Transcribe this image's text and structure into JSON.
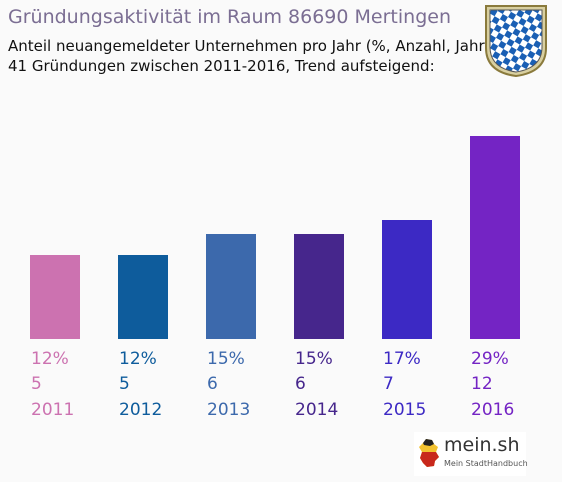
{
  "header": {
    "title": "Gründungsaktivität im Raum 86690 Mertingen",
    "subtitle_line1": "Anteil neuangemeldeter Unternehmen pro Jahr (%, Anzahl, Jahr)",
    "subtitle_line2": "41 Gründungen zwischen 2011-2016, Trend aufsteigend:"
  },
  "crest": {
    "icon": "bavaria-crest-icon",
    "colors": [
      "#1a5fb4",
      "#ffffff"
    ]
  },
  "logo": {
    "brand": "mein.sh",
    "tagline": "Mein StadtHandbuch"
  },
  "chart_data": {
    "type": "bar",
    "categories": [
      "2011",
      "2012",
      "2013",
      "2014",
      "2015",
      "2016"
    ],
    "values": [
      12,
      12,
      15,
      15,
      17,
      29
    ],
    "percent_labels": [
      "12%",
      "12%",
      "15%",
      "15%",
      "17%",
      "29%"
    ],
    "counts": [
      5,
      5,
      6,
      6,
      7,
      12
    ],
    "colors": [
      "#cc72b0",
      "#0e5c9c",
      "#3c69ac",
      "#46268c",
      "#3c29c4",
      "#7424c4"
    ],
    "ylim": [
      0,
      29
    ],
    "grid": false,
    "axes_visible": false
  }
}
